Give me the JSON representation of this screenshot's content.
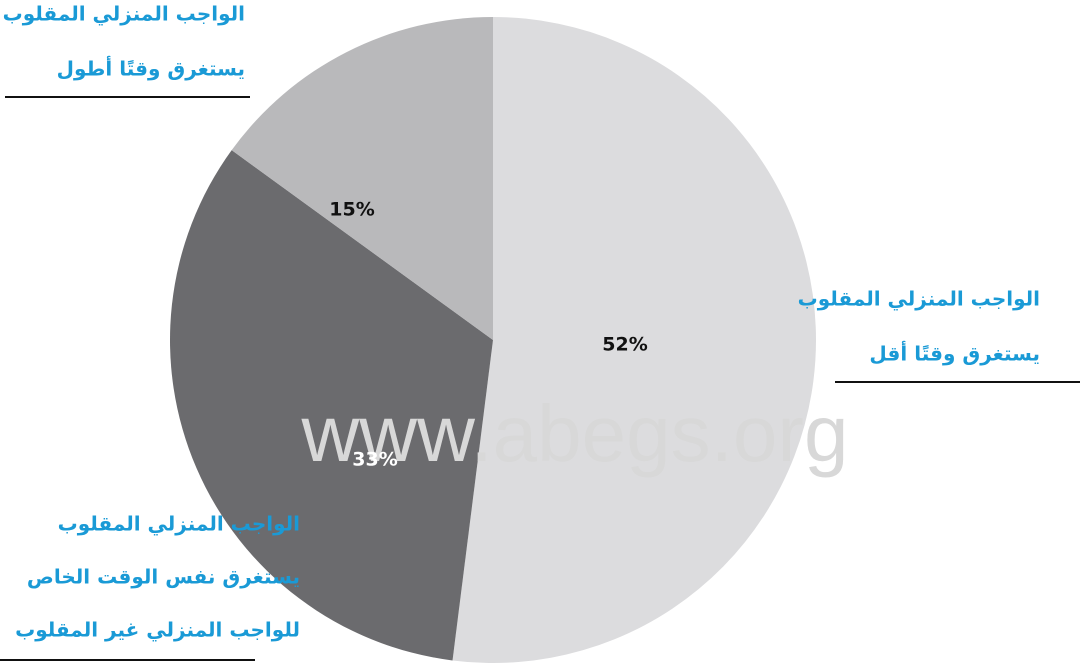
{
  "chart_data": {
    "type": "pie",
    "categories": [
      [
        "الواجب المنزلي المقلوب",
        "يستغرق وقتًا أقل"
      ],
      [
        "الواجب المنزلي المقلوب",
        "يستغرق نفس الوقت الخاص",
        "للواجب المنزلي غير المقلوب"
      ],
      [
        "الواجب المنزلي المقلوب",
        "يستغرق وقتًا أطول"
      ]
    ],
    "values": [
      52,
      33,
      15
    ],
    "value_labels": [
      "52%",
      "33%",
      "15%"
    ],
    "colors": [
      "#dcdcde",
      "#6b6b6e",
      "#b9b9bb"
    ],
    "label_colors": [
      "#111111",
      "#ffffff",
      "#111111"
    ],
    "watermark": "www.abegs.org"
  }
}
